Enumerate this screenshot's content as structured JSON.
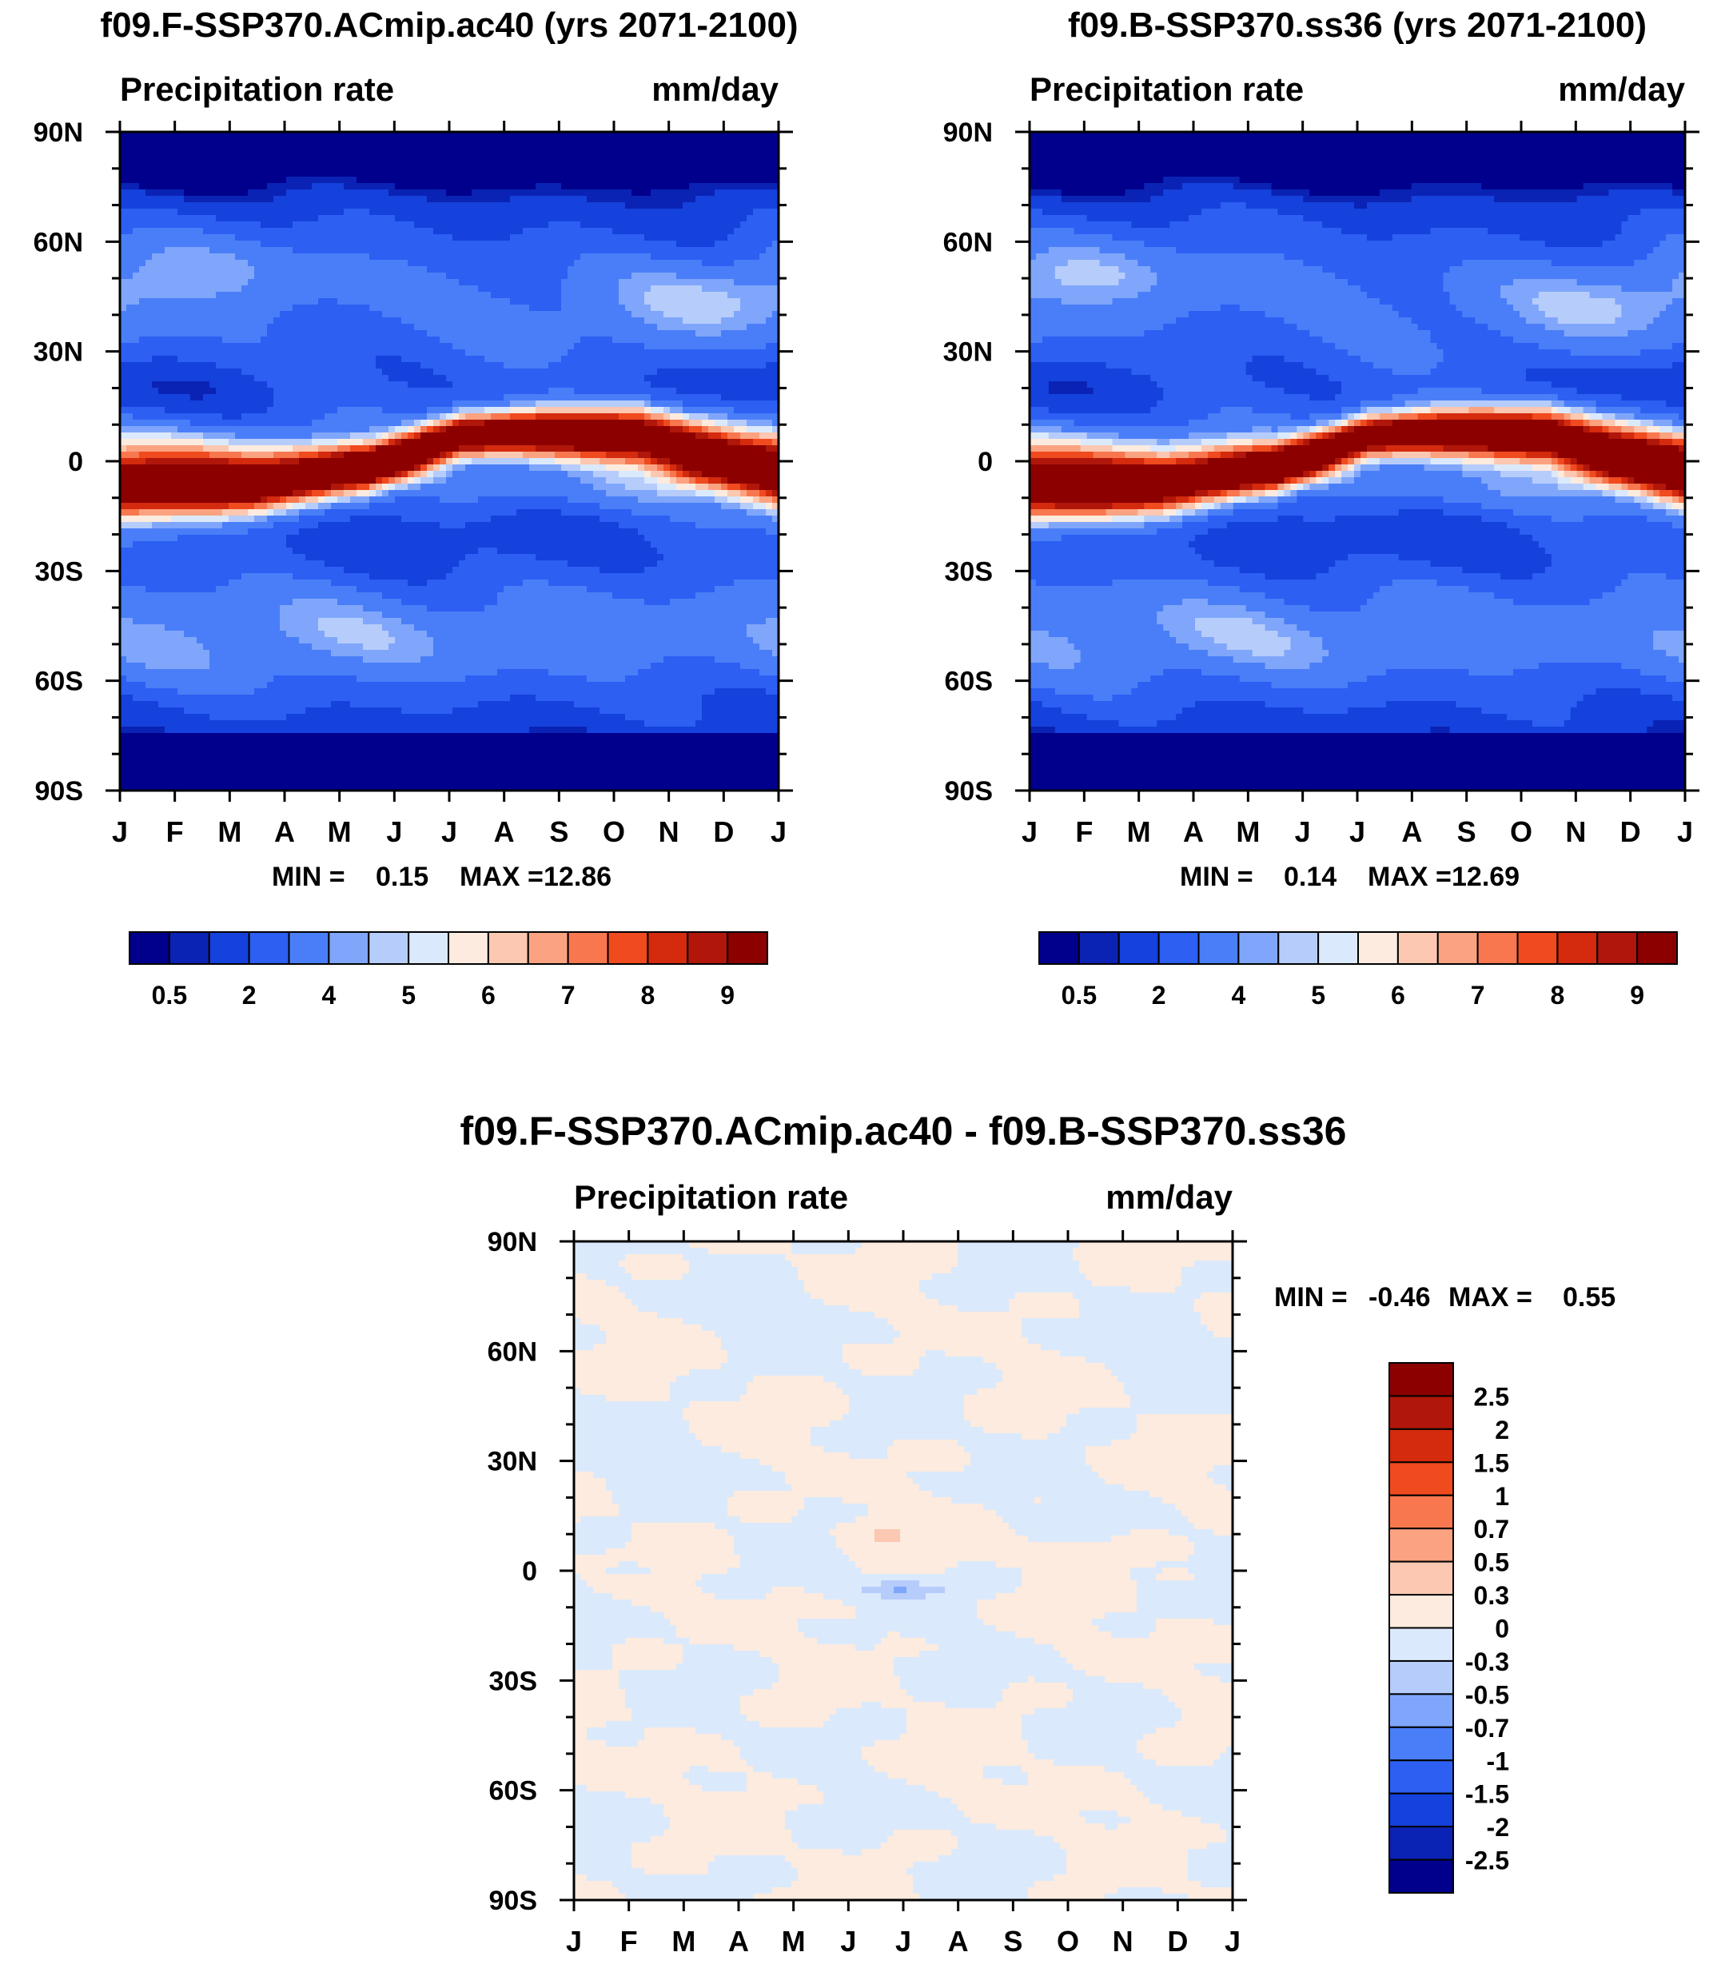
{
  "palettes": {
    "abs": [
      "#00008c",
      "#0a23b4",
      "#1541dc",
      "#2c5ff2",
      "#4a7ef8",
      "#7fa6fa",
      "#b6ccfb",
      "#dbe9fc",
      "#fcebde",
      "#fcc8b1",
      "#fba381",
      "#f8774f",
      "#f04a1f",
      "#d42a0e",
      "#b0170a",
      "#8c0000"
    ],
    "diff": [
      "#00008c",
      "#0a23b4",
      "#1541dc",
      "#2c5ff2",
      "#4a7ef8",
      "#7fa6fa",
      "#b6ccfb",
      "#dbe9fc",
      "#fcebde",
      "#fcc8b1",
      "#fba381",
      "#f8774f",
      "#f04a1f",
      "#d42a0e",
      "#b0170a",
      "#8c0000"
    ]
  },
  "chart_data": [
    {
      "id": "panelA",
      "type": "heatmap",
      "title": "f09.F-SSP370.ACmip.ac40 (yrs 2071-2100)",
      "left_label": "Precipitation rate",
      "right_label": "mm/day",
      "x_ticks": [
        "J",
        "F",
        "M",
        "A",
        "M",
        "J",
        "J",
        "A",
        "S",
        "O",
        "N",
        "D",
        "J"
      ],
      "y_ticks": [
        "90N",
        "60N",
        "30N",
        "0",
        "30S",
        "60S",
        "90S"
      ],
      "min_label": "MIN =",
      "min_value": "0.15",
      "max_label": "MAX =",
      "max_value": "12.86",
      "levels": [
        0.5,
        1,
        2,
        3,
        4,
        4.5,
        5,
        5.5,
        6,
        6.5,
        7,
        7.5,
        8,
        8.5,
        9
      ],
      "colorbar_labels": [
        "0.5",
        "2",
        "4",
        "5",
        "6",
        "7",
        "8",
        "9"
      ],
      "variant": 0
    },
    {
      "id": "panelB",
      "type": "heatmap",
      "title": "f09.B-SSP370.ss36 (yrs 2071-2100)",
      "left_label": "Precipitation rate",
      "right_label": "mm/day",
      "x_ticks": [
        "J",
        "F",
        "M",
        "A",
        "M",
        "J",
        "J",
        "A",
        "S",
        "O",
        "N",
        "D",
        "J"
      ],
      "y_ticks": [
        "90N",
        "60N",
        "30N",
        "0",
        "30S",
        "60S",
        "90S"
      ],
      "min_label": "MIN =",
      "min_value": "0.14",
      "max_label": "MAX =",
      "max_value": "12.69",
      "levels": [
        0.5,
        1,
        2,
        3,
        4,
        4.5,
        5,
        5.5,
        6,
        6.5,
        7,
        7.5,
        8,
        8.5,
        9
      ],
      "colorbar_labels": [
        "0.5",
        "2",
        "4",
        "5",
        "6",
        "7",
        "8",
        "9"
      ],
      "variant": 1
    },
    {
      "id": "panelC",
      "type": "heatmap",
      "title": "f09.F-SSP370.ACmip.ac40 - f09.B-SSP370.ss36",
      "left_label": "Precipitation rate",
      "right_label": "mm/day",
      "x_ticks": [
        "J",
        "F",
        "M",
        "A",
        "M",
        "J",
        "J",
        "A",
        "S",
        "O",
        "N",
        "D",
        "J"
      ],
      "y_ticks": [
        "90N",
        "60N",
        "30N",
        "0",
        "30S",
        "60S",
        "90S"
      ],
      "min_label": "MIN =",
      "min_value": "-0.46",
      "max_label": "MAX =",
      "max_value": "0.55",
      "levels": [
        -2.5,
        -2,
        -1.5,
        -1,
        -0.7,
        -0.5,
        -0.3,
        0,
        0.3,
        0.5,
        0.7,
        1,
        1.5,
        2,
        2.5
      ],
      "colorbar_labels": [
        "2.5",
        "2",
        "1.5",
        "1",
        "0.7",
        "0.5",
        "0.3",
        "0",
        "-0.3",
        "-0.5",
        "-0.7",
        "-1",
        "-1.5",
        "-2",
        "-2.5"
      ]
    }
  ]
}
